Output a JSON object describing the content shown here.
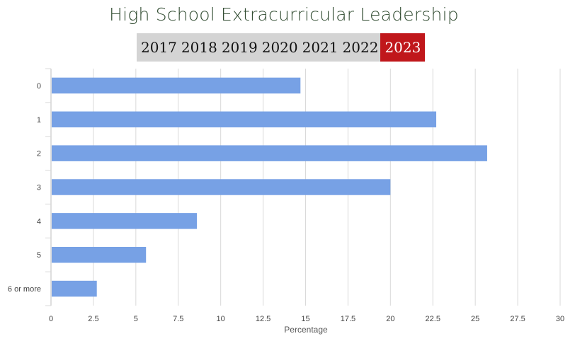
{
  "title": "High School Extracurricular Leadership",
  "year_tabs": {
    "items": [
      "2017",
      "2018",
      "2019",
      "2020",
      "2021",
      "2022",
      "2023"
    ],
    "active": "2023",
    "active_color": "#c0171b",
    "inactive_bg": "#d4d4d4"
  },
  "chart_data": {
    "type": "bar",
    "orientation": "horizontal",
    "title": "High School Extracurricular Leadership",
    "categories": [
      "0",
      "1",
      "2",
      "3",
      "4",
      "5",
      "6 or more"
    ],
    "values": [
      14.7,
      22.7,
      25.7,
      20.0,
      8.6,
      5.6,
      2.7
    ],
    "xlabel": "Percentage",
    "ylabel": "",
    "xlim": [
      0,
      30
    ],
    "xticks": [
      "0",
      "2.5",
      "5",
      "7.5",
      "10",
      "12.5",
      "15",
      "17.5",
      "20",
      "22.5",
      "25",
      "27.5",
      "30"
    ],
    "grid": true,
    "bar_color": "#77a1e5"
  }
}
